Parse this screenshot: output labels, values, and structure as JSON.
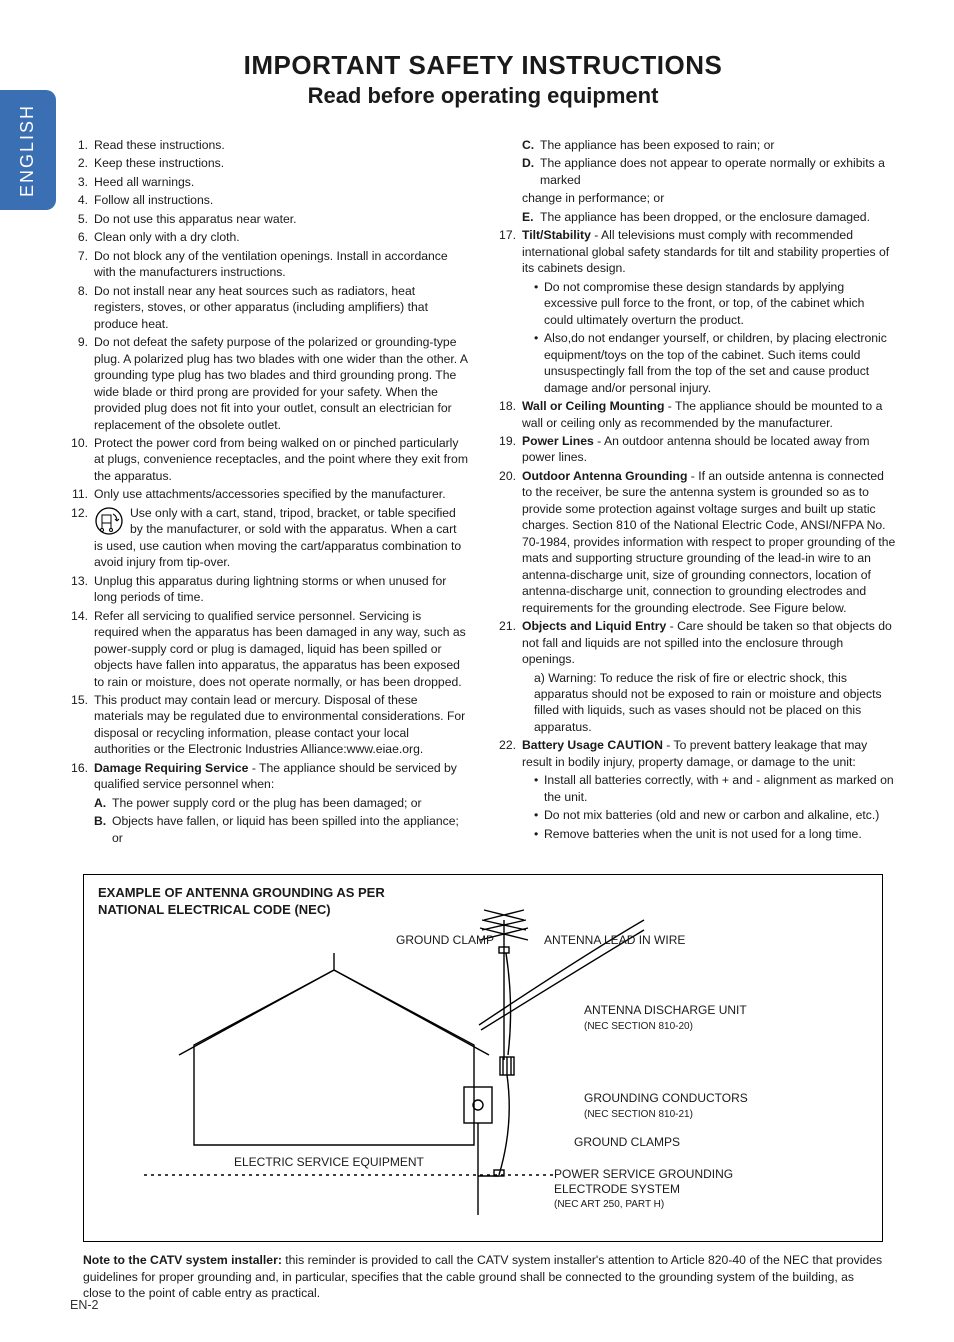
{
  "language_tab": "ENGLISH",
  "title": "IMPORTANT SAFETY INSTRUCTIONS",
  "subtitle": "Read before operating equipment",
  "footer": "EN-2",
  "left_items": [
    {
      "n": "1.",
      "t": "Read these instructions."
    },
    {
      "n": "2.",
      "t": "Keep these instructions."
    },
    {
      "n": "3.",
      "t": "Heed all warnings."
    },
    {
      "n": "4.",
      "t": "Follow all instructions."
    },
    {
      "n": "5.",
      "t": "Do not use this apparatus near water."
    },
    {
      "n": "6.",
      "t": "Clean only with a dry cloth."
    },
    {
      "n": "7.",
      "t": "Do not block any of the ventilation openings. Install in accordance with the manufacturers instructions."
    },
    {
      "n": "8.",
      "t": "Do not install near any heat sources such as radiators, heat registers, stoves, or other apparatus (including amplifiers) that produce heat."
    },
    {
      "n": "9.",
      "t": "Do not defeat the safety purpose of the polarized or grounding-type plug. A polarized plug has two blades with one wider than the other. A grounding type plug has two blades and third grounding prong. The wide blade or third prong are provided for your safety. When the provided plug does not fit into your outlet, consult an electrician for replacement of the obsolete outlet."
    },
    {
      "n": "10.",
      "t": "Protect the power cord from being walked on or pinched particularly at plugs, convenience receptacles, and the point where they exit from the apparatus."
    },
    {
      "n": "11.",
      "t": "Only use attachments/accessories specified by the manufacturer."
    },
    {
      "n": "12.",
      "t": "Use only with a cart, stand, tripod, bracket, or table specified by the manufacturer, or sold with the apparatus. When a cart is used, use caution when moving the cart/apparatus combination to avoid injury from tip-over.",
      "icon": true
    },
    {
      "n": "13.",
      "t": "Unplug this apparatus during lightning storms or when unused for long periods of time."
    },
    {
      "n": "14.",
      "t": "Refer all servicing to qualified service personnel. Servicing is required when the apparatus has been damaged in any way, such as power-supply cord or plug is damaged, liquid has been spilled or objects have fallen into apparatus, the apparatus has been exposed to rain or moisture, does not operate normally, or has been dropped."
    },
    {
      "n": "15.",
      "t": "This product may contain lead or mercury. Disposal of these materials may be regulated due to environmental considerations. For disposal or recycling information, please contact your local authorities or the Electronic Industries Alliance:www.eiae.org."
    },
    {
      "n": "16.",
      "b": "Damage Requiring Service",
      "t": " - The appliance should be serviced by qualified service personnel when:"
    }
  ],
  "left_subitems": [
    {
      "l": "A.",
      "t": "The power supply cord or the plug has been damaged; or"
    },
    {
      "l": "B.",
      "t": "Objects have fallen, or liquid has been spilled into the appliance; or"
    }
  ],
  "right_pre_subitems": [
    {
      "l": "C.",
      "t": "The appliance has been exposed to rain; or"
    },
    {
      "l": "D.",
      "t": "The appliance does not appear to operate normally or exhibits a marked"
    }
  ],
  "right_pre_indent": "change in performance; or",
  "right_pre_subitems2": [
    {
      "l": "E.",
      "t": "The appliance has been dropped, or the enclosure damaged."
    }
  ],
  "right_items": [
    {
      "n": "17.",
      "b": "Tilt/Stability",
      "t": " - All televisions must comply with recommended international global safety standards for tilt and stability properties of its cabinets design."
    },
    {
      "bullets": [
        "Do not compromise these design standards by applying excessive pull force to the front, or top, of the cabinet which could ultimately overturn the product.",
        "Also,do not endanger yourself, or children, by placing electronic equipment/toys on the top of the cabinet. Such items could unsuspectingly fall from the top of the set and cause product damage and/or personal injury."
      ]
    },
    {
      "n": "18.",
      "b": "Wall or Ceiling Mounting",
      "t": " - The appliance should be mounted to a wall or ceiling only as recommended by the manufacturer."
    },
    {
      "n": "19.",
      "b": "Power Lines",
      "t": " - An outdoor antenna should be located away from power lines."
    },
    {
      "n": "20.",
      "b": "Outdoor Antenna Grounding",
      "t": " - If an outside antenna is connected to the receiver, be sure the antenna system is grounded so as to provide some protection against voltage surges and built up static charges. Section 810 of the National Electric Code, ANSI/NFPA No. 70-1984, provides information with respect to proper grounding of the mats and supporting structure grounding of the lead-in wire to an antenna-discharge unit, size of grounding connectors, location of antenna-discharge unit, connection to grounding electrodes and requirements for the grounding electrode. See Figure below."
    },
    {
      "n": "21.",
      "b": "Objects and Liquid Entry",
      "t": " - Care should be taken so that objects do not fall and liquids are not spilled into the enclosure through openings."
    },
    {
      "sub_a": "a) Warning: To reduce the risk of fire or electric shock, this apparatus should not be exposed to rain or moisture and objects filled with liquids, such as vases should not be placed on this apparatus."
    },
    {
      "n": "22.",
      "b": "Battery Usage CAUTION",
      "t": " - To prevent battery leakage that may result in bodily injury, property damage, or damage to the unit:"
    },
    {
      "bullets": [
        "Install all batteries correctly, with + and - alignment as marked on the unit.",
        "Do not mix batteries (old and new or carbon and alkaline, etc.)",
        "Remove batteries when the unit is not used for a long time."
      ]
    }
  ],
  "diagram": {
    "title_l1": "EXAMPLE OF ANTENNA GROUNDING AS PER",
    "title_l2": "NATIONAL ELECTRICAL CODE (NEC)",
    "labels": {
      "ground_clamp_top": "GROUND CLAMP",
      "antenna_lead": "ANTENNA LEAD IN WIRE",
      "discharge_unit": "ANTENNA DISCHARGE UNIT",
      "discharge_unit_sub": "(NEC SECTION 810-20)",
      "grounding_conductors": "GROUNDING CONDUCTORS",
      "grounding_conductors_sub": "(NEC SECTION 810-21)",
      "ground_clamps": "GROUND CLAMPS",
      "electric_service": "ELECTRIC SERVICE EQUIPMENT",
      "power_service": "POWER SERVICE GROUNDING ELECTRODE SYSTEM",
      "power_service_sub": "(NEC ART 250, PART H)"
    },
    "colors": {
      "stroke": "#000000",
      "fill": "#ffffff"
    }
  },
  "note_bold": "Note to the CATV system installer:",
  "note_text": " this reminder is provided to call the CATV system installer's attention to Article 820-40 of the NEC that provides guidelines for proper grounding and, in particular, specifies that the cable ground shall be connected to the grounding system of the building, as close to the point of cable entry as practical."
}
